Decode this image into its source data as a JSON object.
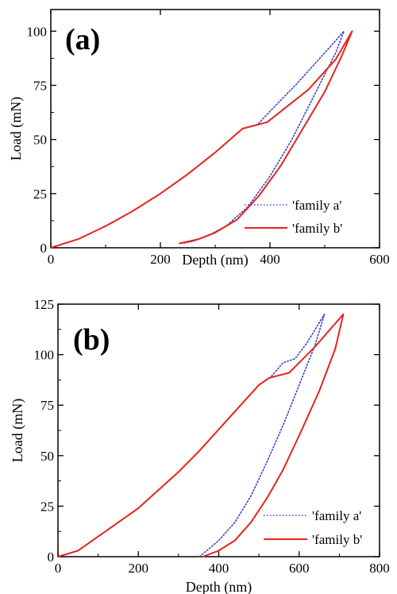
{
  "colors": {
    "family_a": "#3344cc",
    "family_b": "#e8231e",
    "axis": "#000000"
  },
  "chart_data": [
    {
      "type": "line",
      "panel_label": "(a)",
      "xlabel": "Depth (nm)",
      "ylabel": "Load (mN)",
      "xlim": [
        0,
        600
      ],
      "ylim": [
        0,
        110
      ],
      "xticks": [
        0,
        200,
        400,
        600
      ],
      "yticks": [
        0,
        25,
        50,
        75,
        100
      ],
      "grid": false,
      "legend_position": "bottom-right",
      "series": [
        {
          "name": "'family a'",
          "style": "dotted",
          "points": [
            [
              0,
              0
            ],
            [
              50,
              4
            ],
            [
              100,
              10
            ],
            [
              150,
              17
            ],
            [
              200,
              25
            ],
            [
              250,
              34
            ],
            [
              300,
              44
            ],
            [
              350,
              55
            ],
            [
              378,
              57
            ],
            [
              400,
              63
            ],
            [
              450,
              76
            ],
            [
              500,
              90
            ],
            [
              535,
              100
            ],
            [
              520,
              90
            ],
            [
              480,
              70
            ],
            [
              440,
              50
            ],
            [
              400,
              33
            ],
            [
              360,
              19
            ],
            [
              320,
              10
            ],
            [
              290,
              6
            ],
            [
              260,
              3
            ],
            [
              240,
              2
            ]
          ]
        },
        {
          "name": "'family b'",
          "style": "solid",
          "points": [
            [
              0,
              0
            ],
            [
              50,
              4
            ],
            [
              100,
              10
            ],
            [
              150,
              17
            ],
            [
              200,
              25
            ],
            [
              250,
              34
            ],
            [
              300,
              44
            ],
            [
              350,
              55
            ],
            [
              395,
              58
            ],
            [
              420,
              63
            ],
            [
              470,
              73
            ],
            [
              520,
              87
            ],
            [
              550,
              100
            ],
            [
              530,
              88
            ],
            [
              500,
              72
            ],
            [
              460,
              55
            ],
            [
              420,
              38
            ],
            [
              380,
              24
            ],
            [
              340,
              13
            ],
            [
              300,
              7
            ],
            [
              270,
              4
            ],
            [
              235,
              2
            ]
          ]
        }
      ]
    },
    {
      "type": "line",
      "panel_label": "(b)",
      "xlabel": "Depth (nm)",
      "ylabel": "Load (mN)",
      "xlim": [
        0,
        800
      ],
      "ylim": [
        0,
        125
      ],
      "xticks": [
        0,
        200,
        400,
        600,
        800
      ],
      "yticks": [
        0,
        25,
        50,
        75,
        100,
        125
      ],
      "grid": false,
      "legend_position": "bottom-right",
      "series": [
        {
          "name": "'family a'",
          "style": "dotted",
          "points": [
            [
              0,
              0
            ],
            [
              50,
              3
            ],
            [
              100,
              10
            ],
            [
              150,
              17
            ],
            [
              200,
              24
            ],
            [
              250,
              33
            ],
            [
              300,
              42
            ],
            [
              350,
              52
            ],
            [
              400,
              63
            ],
            [
              450,
              74
            ],
            [
              500,
              85
            ],
            [
              530,
              89
            ],
            [
              560,
              96
            ],
            [
              590,
              98
            ],
            [
              620,
              106
            ],
            [
              663,
              120
            ],
            [
              640,
              105
            ],
            [
              600,
              85
            ],
            [
              560,
              65
            ],
            [
              520,
              47
            ],
            [
              480,
              30
            ],
            [
              440,
              17
            ],
            [
              400,
              8
            ],
            [
              370,
              3
            ],
            [
              352,
              0
            ]
          ]
        },
        {
          "name": "'family b'",
          "style": "solid",
          "points": [
            [
              0,
              0
            ],
            [
              50,
              3
            ],
            [
              100,
              10
            ],
            [
              150,
              17
            ],
            [
              200,
              24
            ],
            [
              250,
              33
            ],
            [
              300,
              42
            ],
            [
              350,
              52
            ],
            [
              400,
              63
            ],
            [
              450,
              74
            ],
            [
              500,
              85
            ],
            [
              525,
              88.5
            ],
            [
              575,
              91
            ],
            [
              640,
              104
            ],
            [
              710,
              120
            ],
            [
              690,
              103
            ],
            [
              650,
              82
            ],
            [
              600,
              60
            ],
            [
              560,
              43
            ],
            [
              520,
              29
            ],
            [
              480,
              17
            ],
            [
              440,
              8
            ],
            [
              400,
              3
            ],
            [
              360,
              0
            ]
          ]
        }
      ]
    }
  ]
}
